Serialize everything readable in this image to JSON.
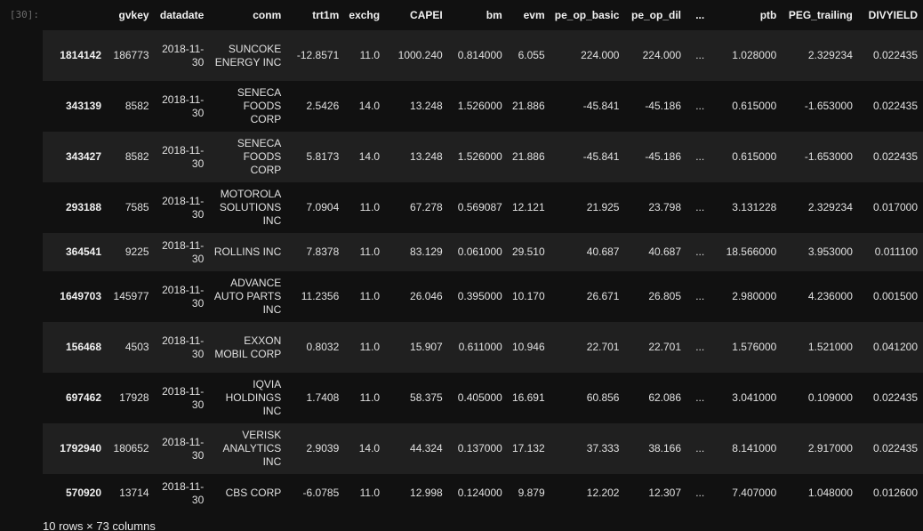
{
  "prompt": "[30]:",
  "columns": [
    "",
    "gvkey",
    "datadate",
    "conm",
    "trt1m",
    "exchg",
    "CAPEI",
    "bm",
    "evm",
    "pe_op_basic",
    "pe_op_dil",
    "...",
    "ptb",
    "PEG_trailing",
    "DIVYIELD"
  ],
  "rows": [
    {
      "index": "1814142",
      "gvkey": "186773",
      "datadate": "2018-11-30",
      "conm": "SUNCOKE ENERGY INC",
      "trt1m": "-12.8571",
      "exchg": "11.0",
      "CAPEI": "1000.240",
      "bm": "0.814000",
      "evm": "6.055",
      "pe_op_basic": "224.000",
      "pe_op_dil": "224.000",
      "ellipsis": "...",
      "ptb": "1.028000",
      "PEG_trailing": "2.329234",
      "DIVYIELD": "0.022435"
    },
    {
      "index": "343139",
      "gvkey": "8582",
      "datadate": "2018-11-30",
      "conm": "SENECA FOODS CORP",
      "trt1m": "2.5426",
      "exchg": "14.0",
      "CAPEI": "13.248",
      "bm": "1.526000",
      "evm": "21.886",
      "pe_op_basic": "-45.841",
      "pe_op_dil": "-45.186",
      "ellipsis": "...",
      "ptb": "0.615000",
      "PEG_trailing": "-1.653000",
      "DIVYIELD": "0.022435"
    },
    {
      "index": "343427",
      "gvkey": "8582",
      "datadate": "2018-11-30",
      "conm": "SENECA FOODS CORP",
      "trt1m": "5.8173",
      "exchg": "14.0",
      "CAPEI": "13.248",
      "bm": "1.526000",
      "evm": "21.886",
      "pe_op_basic": "-45.841",
      "pe_op_dil": "-45.186",
      "ellipsis": "...",
      "ptb": "0.615000",
      "PEG_trailing": "-1.653000",
      "DIVYIELD": "0.022435"
    },
    {
      "index": "293188",
      "gvkey": "7585",
      "datadate": "2018-11-30",
      "conm": "MOTOROLA SOLUTIONS INC",
      "trt1m": "7.0904",
      "exchg": "11.0",
      "CAPEI": "67.278",
      "bm": "0.569087",
      "evm": "12.121",
      "pe_op_basic": "21.925",
      "pe_op_dil": "23.798",
      "ellipsis": "...",
      "ptb": "3.131228",
      "PEG_trailing": "2.329234",
      "DIVYIELD": "0.017000"
    },
    {
      "index": "364541",
      "gvkey": "9225",
      "datadate": "2018-11-30",
      "conm": "ROLLINS INC",
      "trt1m": "7.8378",
      "exchg": "11.0",
      "CAPEI": "83.129",
      "bm": "0.061000",
      "evm": "29.510",
      "pe_op_basic": "40.687",
      "pe_op_dil": "40.687",
      "ellipsis": "...",
      "ptb": "18.566000",
      "PEG_trailing": "3.953000",
      "DIVYIELD": "0.011100"
    },
    {
      "index": "1649703",
      "gvkey": "145977",
      "datadate": "2018-11-30",
      "conm": "ADVANCE AUTO PARTS INC",
      "trt1m": "11.2356",
      "exchg": "11.0",
      "CAPEI": "26.046",
      "bm": "0.395000",
      "evm": "10.170",
      "pe_op_basic": "26.671",
      "pe_op_dil": "26.805",
      "ellipsis": "...",
      "ptb": "2.980000",
      "PEG_trailing": "4.236000",
      "DIVYIELD": "0.001500"
    },
    {
      "index": "156468",
      "gvkey": "4503",
      "datadate": "2018-11-30",
      "conm": "EXXON MOBIL CORP",
      "trt1m": "0.8032",
      "exchg": "11.0",
      "CAPEI": "15.907",
      "bm": "0.611000",
      "evm": "10.946",
      "pe_op_basic": "22.701",
      "pe_op_dil": "22.701",
      "ellipsis": "...",
      "ptb": "1.576000",
      "PEG_trailing": "1.521000",
      "DIVYIELD": "0.041200"
    },
    {
      "index": "697462",
      "gvkey": "17928",
      "datadate": "2018-11-30",
      "conm": "IQVIA HOLDINGS INC",
      "trt1m": "1.7408",
      "exchg": "11.0",
      "CAPEI": "58.375",
      "bm": "0.405000",
      "evm": "16.691",
      "pe_op_basic": "60.856",
      "pe_op_dil": "62.086",
      "ellipsis": "...",
      "ptb": "3.041000",
      "PEG_trailing": "0.109000",
      "DIVYIELD": "0.022435"
    },
    {
      "index": "1792940",
      "gvkey": "180652",
      "datadate": "2018-11-30",
      "conm": "VERISK ANALYTICS INC",
      "trt1m": "2.9039",
      "exchg": "14.0",
      "CAPEI": "44.324",
      "bm": "0.137000",
      "evm": "17.132",
      "pe_op_basic": "37.333",
      "pe_op_dil": "38.166",
      "ellipsis": "...",
      "ptb": "8.141000",
      "PEG_trailing": "2.917000",
      "DIVYIELD": "0.022435"
    },
    {
      "index": "570920",
      "gvkey": "13714",
      "datadate": "2018-11-30",
      "conm": "CBS CORP",
      "trt1m": "-6.0785",
      "exchg": "11.0",
      "CAPEI": "12.998",
      "bm": "0.124000",
      "evm": "9.879",
      "pe_op_basic": "12.202",
      "pe_op_dil": "12.307",
      "ellipsis": "...",
      "ptb": "7.407000",
      "PEG_trailing": "1.048000",
      "DIVYIELD": "0.012600"
    }
  ],
  "shape_text": "10 rows × 73 columns",
  "colors": {
    "background": "#111111",
    "row_stripe": "#202020",
    "text": "#e6e6e6",
    "prompt": "#6e6e6e"
  }
}
